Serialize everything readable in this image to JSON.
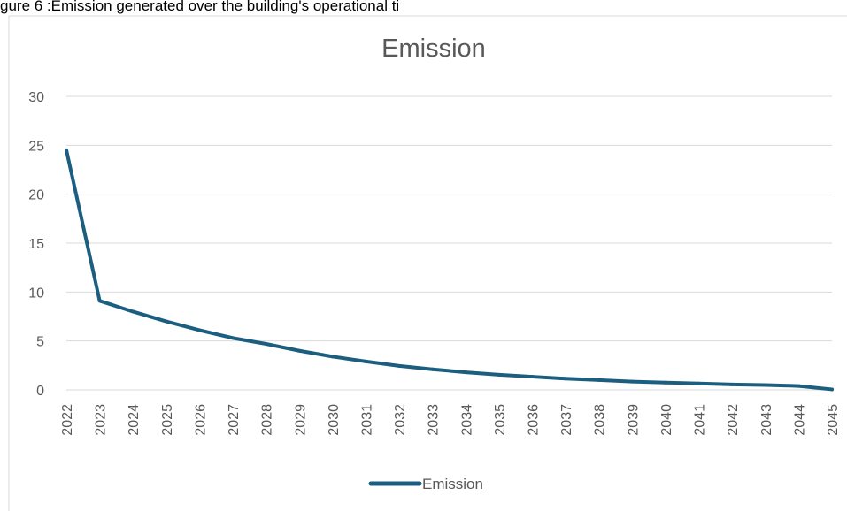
{
  "caption": "gure 6 :Emission generated over the building's operational ti",
  "colors": {
    "line": "#1b5e7f",
    "gridline": "#d9d9d9",
    "text": "#595959",
    "border": "#d9d9d9"
  },
  "chart_data": {
    "type": "line",
    "title": "Emission",
    "xlabel": "",
    "ylabel": "",
    "ylim": [
      0,
      30
    ],
    "yticks": [
      "0",
      "5",
      "10",
      "15",
      "20",
      "25",
      "30"
    ],
    "categories": [
      "2022",
      "2023",
      "2024",
      "2025",
      "2026",
      "2027",
      "2028",
      "2029",
      "2030",
      "2031",
      "2032",
      "2033",
      "2034",
      "2035",
      "2036",
      "2037",
      "2038",
      "2039",
      "2040",
      "2041",
      "2042",
      "2043",
      "2044",
      "2045"
    ],
    "series": [
      {
        "name": "Emission",
        "values": [
          24.5,
          9.1,
          8.0,
          7.0,
          6.1,
          5.3,
          4.7,
          4.0,
          3.4,
          2.9,
          2.45,
          2.1,
          1.8,
          1.55,
          1.35,
          1.15,
          1.0,
          0.85,
          0.75,
          0.65,
          0.55,
          0.5,
          0.4,
          0.05
        ]
      }
    ],
    "grid": true,
    "legend": "bottom"
  }
}
